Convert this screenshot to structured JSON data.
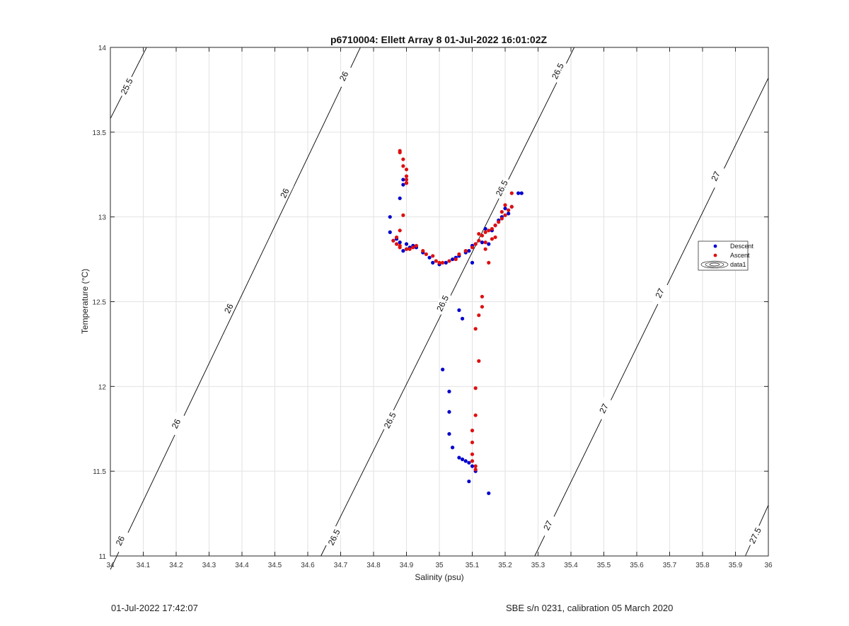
{
  "chart_data": {
    "type": "scatter",
    "title": "p6710004: Ellett Array 8 01-Jul-2022 16:01:02Z",
    "xlabel": "Salinity (psu)",
    "ylabel": "Temperature (°C)",
    "xlim": [
      34,
      36
    ],
    "ylim": [
      11,
      14
    ],
    "x_ticks": [
      34,
      34.1,
      34.2,
      34.3,
      34.4,
      34.5,
      34.6,
      34.7,
      34.8,
      34.9,
      35,
      35.1,
      35.2,
      35.3,
      35.4,
      35.5,
      35.6,
      35.7,
      35.8,
      35.9,
      36
    ],
    "x_tick_labels": [
      "34",
      "34.1",
      "34.2",
      "34.3",
      "34.4",
      "34.5",
      "34.6",
      "34.7",
      "34.8",
      "34.9",
      "35",
      "35.1",
      "35.2",
      "35.3",
      "35.4",
      "35.5",
      "35.6",
      "35.7",
      "35.8",
      "35.9",
      "36"
    ],
    "y_ticks": [
      11,
      11.5,
      12,
      12.5,
      13,
      13.5,
      14
    ],
    "y_tick_labels": [
      "11",
      "11.5",
      "12",
      "12.5",
      "13",
      "13.5",
      "14"
    ],
    "grid": true,
    "legend_position": "right",
    "legend": [
      {
        "name": "Descent",
        "color": "#0000cc",
        "kind": "dot"
      },
      {
        "name": "Ascent",
        "color": "#dd1111",
        "kind": "dot"
      },
      {
        "name": "data1",
        "color": "#000000",
        "kind": "contour"
      }
    ],
    "contours": [
      {
        "level": "25.5",
        "x": [
          34.0,
          34.11
        ],
        "y": [
          13.58,
          14.0
        ]
      },
      {
        "level": "26",
        "x": [
          34.0,
          34.76
        ],
        "y": [
          10.92,
          14.0
        ]
      },
      {
        "level": "26.5",
        "x": [
          34.64,
          35.41
        ],
        "y": [
          11.0,
          14.0
        ]
      },
      {
        "level": "27",
        "x": [
          35.29,
          36.0
        ],
        "y": [
          11.0,
          13.82
        ]
      },
      {
        "level": "27.5",
        "x": [
          35.93,
          36.0
        ],
        "y": [
          11.0,
          11.3
        ]
      }
    ],
    "contour_labels": [
      {
        "text": "25.5",
        "x": 34.05,
        "y": 13.77
      },
      {
        "text": "26",
        "x": 34.03,
        "y": 11.09
      },
      {
        "text": "26",
        "x": 34.2,
        "y": 11.78
      },
      {
        "text": "26",
        "x": 34.36,
        "y": 12.46
      },
      {
        "text": "26",
        "x": 34.53,
        "y": 13.14
      },
      {
        "text": "26",
        "x": 34.71,
        "y": 13.83
      },
      {
        "text": "26.5",
        "x": 34.68,
        "y": 11.11
      },
      {
        "text": "26.5",
        "x": 34.85,
        "y": 11.8
      },
      {
        "text": "26.5",
        "x": 35.01,
        "y": 12.49
      },
      {
        "text": "26.5",
        "x": 35.19,
        "y": 13.17
      },
      {
        "text": "26.5",
        "x": 35.36,
        "y": 13.86
      },
      {
        "text": "27",
        "x": 35.33,
        "y": 11.18
      },
      {
        "text": "27",
        "x": 35.5,
        "y": 11.87
      },
      {
        "text": "27",
        "x": 35.67,
        "y": 12.55
      },
      {
        "text": "27",
        "x": 35.84,
        "y": 13.24
      },
      {
        "text": "27.5",
        "x": 35.96,
        "y": 11.12
      }
    ],
    "series": [
      {
        "name": "Descent",
        "color": "#0000cc",
        "x": [
          34.85,
          34.85,
          34.86,
          34.87,
          34.88,
          34.89,
          34.9,
          34.88,
          34.89,
          34.9,
          34.89,
          34.91,
          34.92,
          34.9,
          34.93,
          34.95,
          34.97,
          34.98,
          35.0,
          35.02,
          35.04,
          35.05,
          35.06,
          35.08,
          35.09,
          35.1,
          35.11,
          35.13,
          35.15,
          35.1,
          35.14,
          35.17,
          35.16,
          35.18,
          35.19,
          35.21,
          35.22,
          35.2,
          35.24,
          35.25,
          35.06,
          35.07,
          35.01,
          35.03,
          35.03,
          35.03,
          35.04,
          35.06,
          35.07,
          35.08,
          35.09,
          35.1,
          35.11,
          35.09,
          35.15
        ],
        "y": [
          13.0,
          12.91,
          12.86,
          12.87,
          12.85,
          12.8,
          12.81,
          13.11,
          13.19,
          13.2,
          13.22,
          12.82,
          12.83,
          12.84,
          12.82,
          12.79,
          12.76,
          12.73,
          12.72,
          12.73,
          12.75,
          12.76,
          12.77,
          12.79,
          12.8,
          12.83,
          12.84,
          12.85,
          12.84,
          12.73,
          12.93,
          12.95,
          12.92,
          12.98,
          13.0,
          13.02,
          13.06,
          13.05,
          13.14,
          13.14,
          12.45,
          12.4,
          12.1,
          11.97,
          11.85,
          11.72,
          11.64,
          11.58,
          11.57,
          11.56,
          11.55,
          11.53,
          11.5,
          11.44,
          11.37
        ]
      },
      {
        "name": "Ascent",
        "color": "#dd1111",
        "x": [
          34.88,
          34.88,
          34.89,
          34.89,
          34.9,
          34.9,
          34.9,
          34.9,
          34.89,
          34.88,
          34.87,
          34.86,
          34.87,
          34.88,
          34.88,
          34.9,
          34.91,
          34.92,
          34.93,
          34.95,
          34.96,
          34.98,
          34.99,
          35.0,
          35.01,
          35.03,
          35.05,
          35.06,
          35.08,
          35.1,
          35.11,
          35.12,
          35.13,
          35.14,
          35.15,
          35.16,
          35.17,
          35.18,
          35.19,
          35.2,
          35.21,
          35.22,
          35.22,
          35.2,
          35.19,
          35.17,
          35.16,
          35.14,
          35.15,
          35.12,
          35.13,
          35.14,
          35.13,
          35.12,
          35.11,
          35.12,
          35.11,
          35.11,
          35.1,
          35.1,
          35.1,
          35.1,
          35.11,
          35.11
        ],
        "y": [
          13.39,
          13.38,
          13.34,
          13.3,
          13.28,
          13.24,
          13.22,
          13.2,
          13.01,
          12.92,
          12.88,
          12.86,
          12.84,
          12.83,
          12.82,
          12.81,
          12.81,
          12.82,
          12.83,
          12.8,
          12.78,
          12.77,
          12.74,
          12.73,
          12.73,
          12.74,
          12.75,
          12.78,
          12.8,
          12.82,
          12.84,
          12.86,
          12.89,
          12.91,
          12.92,
          12.93,
          12.95,
          12.97,
          12.99,
          13.01,
          13.04,
          13.06,
          13.14,
          13.07,
          13.03,
          12.88,
          12.87,
          12.81,
          12.73,
          12.9,
          12.53,
          12.85,
          12.47,
          12.42,
          12.34,
          12.15,
          11.99,
          11.83,
          11.74,
          11.67,
          11.6,
          11.56,
          11.53,
          11.51
        ]
      }
    ]
  },
  "footer": {
    "left": "01-Jul-2022 17:42:07",
    "right": "SBE s/n 0231, calibration 05 March 2020"
  }
}
